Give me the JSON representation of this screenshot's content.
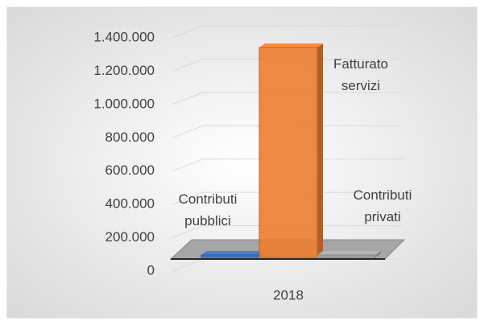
{
  "chart_data": {
    "type": "bar3d",
    "categories": [
      "2018"
    ],
    "series": [
      {
        "name": "Contributi pubblici",
        "color": "#4472c4",
        "values": [
          10000
        ]
      },
      {
        "name": "Fatturato servizi",
        "color": "#ed7d31",
        "values": [
          1260000
        ]
      },
      {
        "name": "Contributi privati",
        "color": "#a5a5a5",
        "values": [
          10000
        ]
      }
    ],
    "ylim": [
      0,
      1400000
    ],
    "yticks": [
      0,
      {
        "value": 200000,
        "label": "200.000"
      },
      {
        "value": 400000,
        "label": "400.000"
      },
      {
        "value": 600000,
        "label": "600.000"
      },
      {
        "value": 800000,
        "label": "800.000"
      },
      {
        "value": 1000000,
        "label": "1.000.000"
      },
      {
        "value": 1200000,
        "label": "1.200.000"
      },
      {
        "value": 1400000,
        "label": "1.400.000"
      }
    ],
    "grid": true
  }
}
